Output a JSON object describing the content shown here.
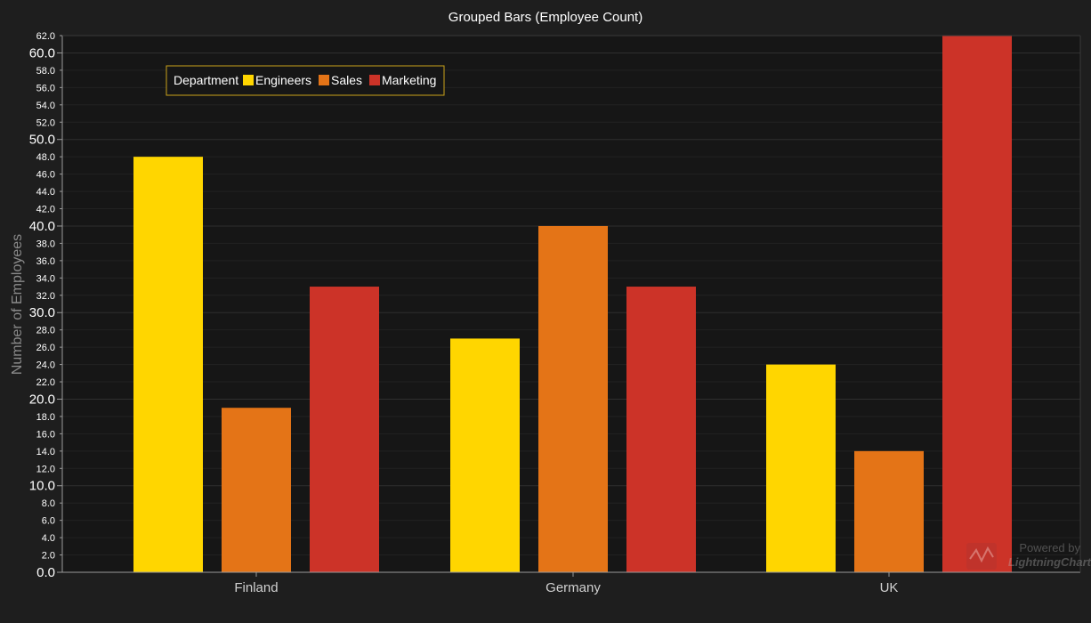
{
  "chart_data": {
    "type": "bar",
    "title": "Grouped Bars (Employee Count)",
    "xlabel": "",
    "ylabel": "Number of Employees",
    "categories": [
      "Finland",
      "Germany",
      "UK"
    ],
    "series": [
      {
        "name": "Engineers",
        "values": [
          48,
          27,
          24
        ],
        "color": "#ffd600"
      },
      {
        "name": "Sales",
        "values": [
          19,
          40,
          14
        ],
        "color": "#e47417"
      },
      {
        "name": "Marketing",
        "values": [
          33,
          33,
          62
        ],
        "color": "#cc3328"
      }
    ],
    "ylim": [
      0,
      62
    ],
    "y_major_step": 10,
    "y_minor_step": 2,
    "grid": true,
    "legend": {
      "title": "Department",
      "placement": "top-left"
    }
  },
  "watermark": {
    "line1": "Powered by",
    "line2": "LightningChart"
  },
  "colors": {
    "background": "#1e1e1e",
    "plot_background": "#161616",
    "grid": "#2c2c2c",
    "legend_border": "#c9a21b"
  }
}
